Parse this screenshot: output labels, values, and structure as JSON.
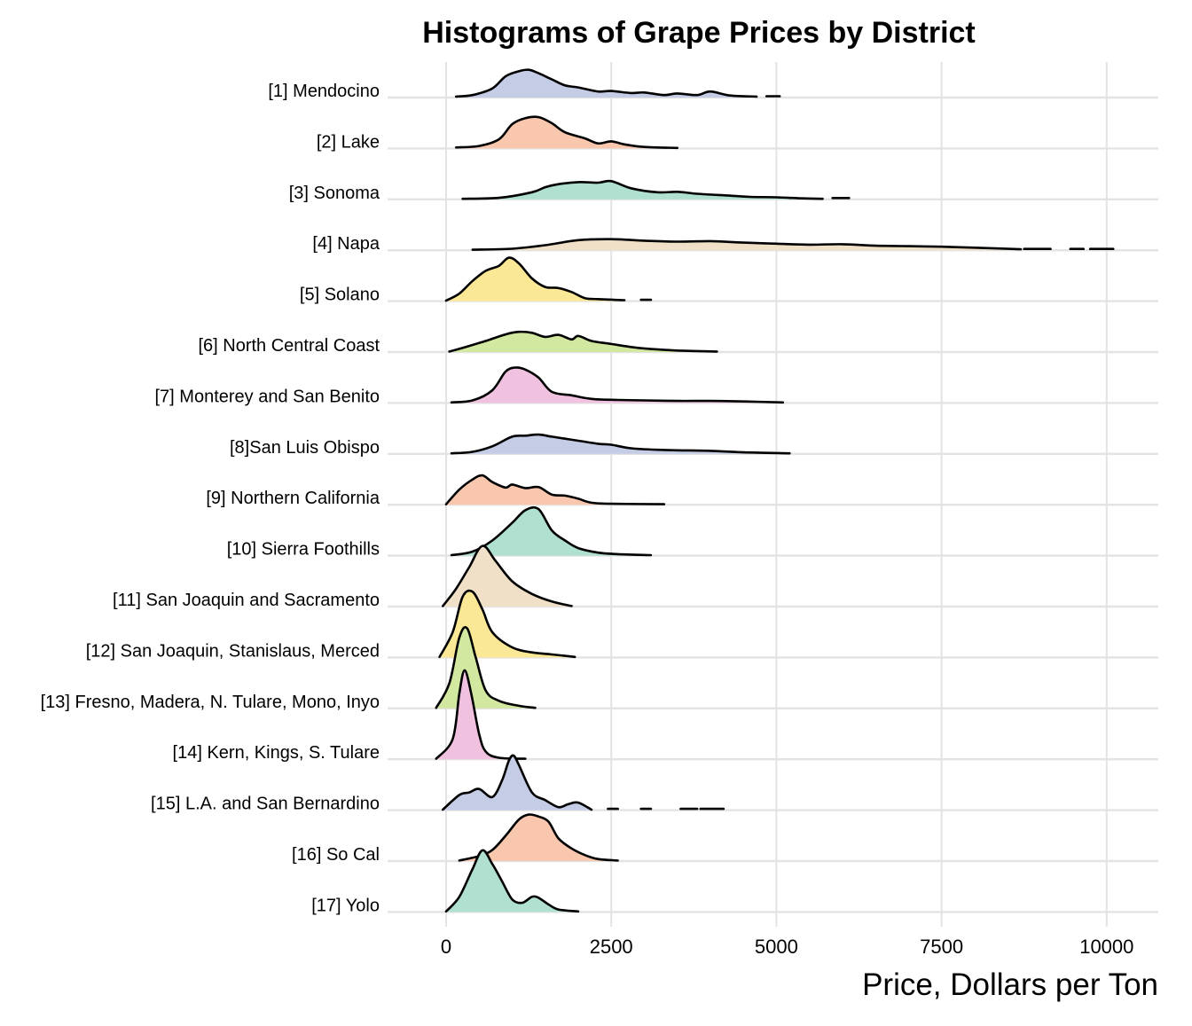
{
  "chart_data": {
    "type": "ridgeline",
    "title": "Histograms of Grape Prices by District",
    "xlabel": "Price, Dollars per Ton",
    "ylabel": "",
    "xlim": [
      -450,
      10800
    ],
    "xticks": [
      0,
      2500,
      5000,
      7500,
      10000
    ],
    "xtick_labels": [
      "0",
      "2500",
      "5000",
      "7500",
      "10000"
    ],
    "grid": true,
    "legend": "none",
    "palette": [
      "#c5cce6",
      "#f9c6ae",
      "#b0e0d0",
      "#f0e0c8",
      "#fbe897",
      "#d2e8a0",
      "#f0c2e0"
    ],
    "series": [
      {
        "name": "[1] Mendocino",
        "color": "#c5cce6",
        "x": [
          150,
          400,
          700,
          900,
          1100,
          1250,
          1400,
          1600,
          1800,
          2000,
          2300,
          2500,
          2800,
          3000,
          3300,
          3500,
          3800,
          4000,
          4300,
          4700
        ],
        "y": [
          0.02,
          0.05,
          0.18,
          0.42,
          0.52,
          0.55,
          0.48,
          0.36,
          0.24,
          0.2,
          0.12,
          0.13,
          0.09,
          0.1,
          0.05,
          0.08,
          0.05,
          0.12,
          0.04,
          0.02
        ],
        "gaps": [
          [
            4850,
            5050
          ]
        ]
      },
      {
        "name": "[2] Lake",
        "color": "#f9c6ae",
        "x": [
          150,
          500,
          800,
          1000,
          1200,
          1400,
          1600,
          1800,
          2100,
          2300,
          2500,
          2700,
          3000,
          3500
        ],
        "y": [
          0.02,
          0.05,
          0.18,
          0.48,
          0.6,
          0.62,
          0.5,
          0.32,
          0.2,
          0.1,
          0.14,
          0.08,
          0.03,
          0.01
        ],
        "gaps": []
      },
      {
        "name": "[3] Sonoma",
        "color": "#b0e0d0",
        "x": [
          250,
          800,
          1300,
          1500,
          1700,
          2000,
          2300,
          2500,
          2800,
          3200,
          3500,
          3800,
          4200,
          4600,
          5000,
          5400,
          5700
        ],
        "y": [
          0.01,
          0.03,
          0.14,
          0.24,
          0.3,
          0.34,
          0.33,
          0.36,
          0.22,
          0.14,
          0.15,
          0.11,
          0.08,
          0.05,
          0.04,
          0.02,
          0.01
        ],
        "gaps": [
          [
            5850,
            6100
          ]
        ]
      },
      {
        "name": "[4] Napa",
        "color": "#f0e0c8",
        "x": [
          400,
          1000,
          1500,
          2000,
          2500,
          3000,
          3500,
          4000,
          4500,
          5000,
          5500,
          6000,
          6500,
          7000,
          7500,
          8000,
          8700
        ],
        "y": [
          0.01,
          0.03,
          0.1,
          0.2,
          0.22,
          0.19,
          0.17,
          0.18,
          0.15,
          0.13,
          0.11,
          0.12,
          0.09,
          0.08,
          0.07,
          0.05,
          0.02
        ],
        "gaps": [
          [
            8750,
            9150
          ],
          [
            9450,
            9650
          ],
          [
            9750,
            10100
          ]
        ]
      },
      {
        "name": "[5] Solano",
        "color": "#fbe897",
        "x": [
          0,
          200,
          400,
          600,
          800,
          950,
          1100,
          1300,
          1500,
          1700,
          1900,
          2100,
          2300,
          2700
        ],
        "y": [
          0.01,
          0.15,
          0.4,
          0.6,
          0.7,
          0.86,
          0.75,
          0.45,
          0.28,
          0.26,
          0.18,
          0.06,
          0.04,
          0.02
        ],
        "gaps": [
          [
            2950,
            3100
          ]
        ]
      },
      {
        "name": "[6] North Central Coast",
        "color": "#d2e8a0",
        "x": [
          50,
          300,
          600,
          900,
          1100,
          1300,
          1500,
          1700,
          1900,
          2000,
          2200,
          2500,
          2800,
          3100,
          3500,
          4100
        ],
        "y": [
          0.01,
          0.1,
          0.22,
          0.35,
          0.4,
          0.38,
          0.3,
          0.34,
          0.25,
          0.32,
          0.22,
          0.16,
          0.1,
          0.06,
          0.03,
          0.01
        ],
        "gaps": []
      },
      {
        "name": "[7] Monterey and San Benito",
        "color": "#f0c2e0",
        "x": [
          80,
          400,
          700,
          900,
          1050,
          1200,
          1400,
          1600,
          1900,
          2200,
          2600,
          3000,
          3500,
          4000,
          4500,
          5100
        ],
        "y": [
          0.01,
          0.05,
          0.25,
          0.62,
          0.7,
          0.66,
          0.5,
          0.22,
          0.15,
          0.08,
          0.06,
          0.05,
          0.04,
          0.04,
          0.03,
          0.01
        ],
        "gaps": []
      },
      {
        "name": "[8]San Luis Obispo",
        "color": "#c5cce6",
        "x": [
          80,
          400,
          700,
          1000,
          1200,
          1400,
          1600,
          1800,
          2000,
          2300,
          2500,
          2800,
          3200,
          3500,
          4000,
          4500,
          5200
        ],
        "y": [
          0.01,
          0.04,
          0.15,
          0.34,
          0.36,
          0.38,
          0.34,
          0.3,
          0.26,
          0.2,
          0.18,
          0.11,
          0.08,
          0.07,
          0.06,
          0.03,
          0.01
        ],
        "gaps": []
      },
      {
        "name": "[9] Northern California",
        "color": "#f9c6ae",
        "x": [
          0,
          200,
          400,
          550,
          700,
          900,
          1000,
          1200,
          1400,
          1600,
          1800,
          2000,
          2200,
          2500,
          3300
        ],
        "y": [
          0.01,
          0.3,
          0.5,
          0.58,
          0.45,
          0.34,
          0.4,
          0.33,
          0.35,
          0.2,
          0.18,
          0.12,
          0.04,
          0.02,
          0.01
        ],
        "gaps": []
      },
      {
        "name": "[10] Sierra Foothills",
        "color": "#b0e0d0",
        "x": [
          80,
          400,
          700,
          1000,
          1200,
          1400,
          1600,
          1800,
          2000,
          2300,
          2600,
          3100
        ],
        "y": [
          0.01,
          0.08,
          0.3,
          0.65,
          0.9,
          0.92,
          0.5,
          0.3,
          0.15,
          0.06,
          0.03,
          0.01
        ],
        "gaps": []
      },
      {
        "name": "[11] San Joaquin and Sacramento",
        "color": "#f0e0c8",
        "x": [
          -50,
          150,
          350,
          550,
          750,
          1000,
          1300,
          1600,
          1900
        ],
        "y": [
          0.01,
          0.35,
          0.78,
          1.2,
          0.9,
          0.5,
          0.25,
          0.1,
          0.01
        ],
        "gaps": []
      },
      {
        "name": "[12] San Joaquin, Stanislaus, Merced",
        "color": "#fbe897",
        "x": [
          -100,
          100,
          250,
          400,
          550,
          700,
          1000,
          1300,
          1600,
          1950
        ],
        "y": [
          0.01,
          0.5,
          1.2,
          1.3,
          0.95,
          0.5,
          0.2,
          0.1,
          0.06,
          0.01
        ],
        "gaps": []
      },
      {
        "name": "[13] Fresno, Madera, N. Tulare, Mono, Inyo",
        "color": "#d2e8a0",
        "x": [
          -150,
          50,
          200,
          320,
          450,
          600,
          800,
          1100,
          1350
        ],
        "y": [
          0.01,
          0.5,
          1.4,
          1.58,
          1.0,
          0.35,
          0.15,
          0.05,
          0.01
        ],
        "gaps": []
      },
      {
        "name": "[14] Kern, Kings, S. Tulare",
        "color": "#f0c2e0",
        "x": [
          -150,
          100,
          200,
          280,
          380,
          500,
          600,
          800,
          1200
        ],
        "y": [
          0.01,
          0.4,
          1.3,
          1.76,
          1.3,
          0.5,
          0.15,
          0.03,
          0.01
        ],
        "gaps": []
      },
      {
        "name": "[15] L.A. and San Bernardino",
        "color": "#c5cce6",
        "x": [
          -50,
          200,
          350,
          500,
          700,
          850,
          950,
          1020,
          1100,
          1300,
          1500,
          1700,
          1850,
          2000,
          2200
        ],
        "y": [
          0.01,
          0.3,
          0.35,
          0.42,
          0.26,
          0.6,
          0.98,
          1.08,
          0.9,
          0.35,
          0.2,
          0.06,
          0.12,
          0.15,
          0.01
        ],
        "gaps": [
          [
            2450,
            2600
          ],
          [
            2950,
            3100
          ],
          [
            3550,
            3800
          ],
          [
            3850,
            4200
          ]
        ]
      },
      {
        "name": "[16] So Cal",
        "color": "#f9c6ae",
        "x": [
          200,
          500,
          700,
          900,
          1100,
          1250,
          1400,
          1550,
          1700,
          1900,
          2100,
          2300,
          2600
        ],
        "y": [
          0.01,
          0.1,
          0.22,
          0.5,
          0.82,
          0.92,
          0.88,
          0.78,
          0.45,
          0.25,
          0.12,
          0.04,
          0.01
        ],
        "gaps": []
      },
      {
        "name": "[17] Yolo",
        "color": "#b0e0d0",
        "x": [
          0,
          200,
          400,
          550,
          700,
          850,
          1000,
          1150,
          1300,
          1400,
          1550,
          1700,
          2000
        ],
        "y": [
          0.01,
          0.3,
          0.85,
          1.22,
          0.95,
          0.6,
          0.25,
          0.18,
          0.3,
          0.28,
          0.15,
          0.05,
          0.01
        ],
        "gaps": []
      }
    ]
  }
}
